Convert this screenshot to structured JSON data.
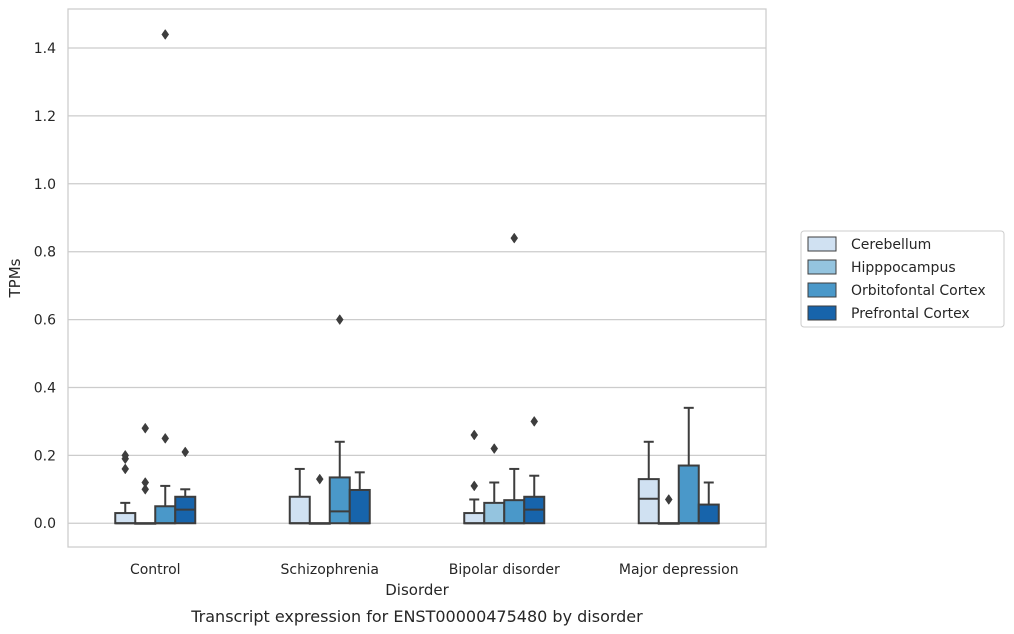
{
  "chart_data": {
    "type": "box",
    "caption": "Transcript expression for ENST00000475480 by disorder",
    "xlabel": "Disorder",
    "ylabel": "TPMs",
    "ylim": [
      -0.07,
      1.515
    ],
    "yticks": [
      0.0,
      0.2,
      0.4,
      0.6,
      0.8,
      1.0,
      1.2,
      1.4
    ],
    "ytick_labels": [
      "0.0",
      "0.2",
      "0.4",
      "0.6",
      "0.8",
      "1.0",
      "1.2",
      "1.4"
    ],
    "grid": "horizontal",
    "legend_position": "right",
    "categories": [
      "Control",
      "Schizophrenia",
      "Bipolar disorder",
      "Major depression"
    ],
    "series": [
      {
        "name": "Cerebellum",
        "color": "#d0e1f2",
        "boxes": [
          {
            "q1": 0.0,
            "median": 0.0,
            "q3": 0.03,
            "whisker_low": 0.0,
            "whisker_high": 0.06,
            "outliers": [
              0.16,
              0.19,
              0.2
            ]
          },
          {
            "q1": 0.0,
            "median": 0.0,
            "q3": 0.078,
            "whisker_low": 0.0,
            "whisker_high": 0.16,
            "outliers": []
          },
          {
            "q1": 0.0,
            "median": 0.0,
            "q3": 0.03,
            "whisker_low": 0.0,
            "whisker_high": 0.07,
            "outliers": [
              0.11,
              0.26
            ]
          },
          {
            "q1": 0.0,
            "median": 0.072,
            "q3": 0.13,
            "whisker_low": 0.0,
            "whisker_high": 0.24,
            "outliers": []
          }
        ]
      },
      {
        "name": "Hipppocampus",
        "color": "#94c4df",
        "boxes": [
          {
            "q1": 0.0,
            "median": 0.0,
            "q3": 0.0,
            "whisker_low": 0.0,
            "whisker_high": 0.0,
            "outliers": [
              0.1,
              0.12,
              0.28
            ]
          },
          {
            "q1": 0.0,
            "median": 0.0,
            "q3": 0.0,
            "whisker_low": 0.0,
            "whisker_high": 0.0,
            "outliers": [
              0.13
            ]
          },
          {
            "q1": 0.0,
            "median": 0.0,
            "q3": 0.06,
            "whisker_low": 0.0,
            "whisker_high": 0.12,
            "outliers": [
              0.22
            ]
          },
          {
            "q1": 0.0,
            "median": 0.0,
            "q3": 0.0,
            "whisker_low": 0.0,
            "whisker_high": 0.0,
            "outliers": [
              0.07
            ]
          }
        ]
      },
      {
        "name": "Orbitofontal Cortex",
        "color": "#4a98c9",
        "boxes": [
          {
            "q1": 0.0,
            "median": 0.0,
            "q3": 0.05,
            "whisker_low": 0.0,
            "whisker_high": 0.11,
            "outliers": [
              0.25,
              1.44
            ]
          },
          {
            "q1": 0.0,
            "median": 0.035,
            "q3": 0.135,
            "whisker_low": 0.0,
            "whisker_high": 0.24,
            "outliers": [
              0.6
            ]
          },
          {
            "q1": 0.0,
            "median": 0.0,
            "q3": 0.068,
            "whisker_low": 0.0,
            "whisker_high": 0.16,
            "outliers": [
              0.84
            ]
          },
          {
            "q1": 0.0,
            "median": 0.0,
            "q3": 0.17,
            "whisker_low": 0.0,
            "whisker_high": 0.34,
            "outliers": []
          }
        ]
      },
      {
        "name": "Prefrontal Cortex",
        "color": "#1764ab",
        "boxes": [
          {
            "q1": 0.0,
            "median": 0.04,
            "q3": 0.078,
            "whisker_low": 0.0,
            "whisker_high": 0.1,
            "outliers": [
              0.21
            ]
          },
          {
            "q1": 0.0,
            "median": 0.0,
            "q3": 0.098,
            "whisker_low": 0.0,
            "whisker_high": 0.15,
            "outliers": []
          },
          {
            "q1": 0.0,
            "median": 0.04,
            "q3": 0.078,
            "whisker_low": 0.0,
            "whisker_high": 0.14,
            "outliers": [
              0.3
            ]
          },
          {
            "q1": 0.0,
            "median": 0.0,
            "q3": 0.055,
            "whisker_low": 0.0,
            "whisker_high": 0.12,
            "outliers": []
          }
        ]
      }
    ]
  }
}
